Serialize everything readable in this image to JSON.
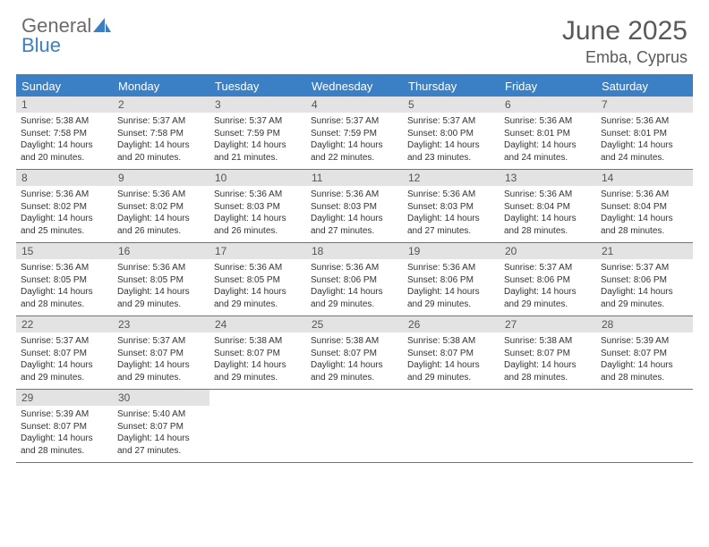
{
  "brand": {
    "general": "General",
    "blue": "Blue"
  },
  "title": "June 2025",
  "location": "Emba, Cyprus",
  "colors": {
    "accent": "#3b7fc4",
    "headerText": "#595959",
    "dayBarBg": "#e3e3e3",
    "dayBarText": "#555555",
    "bodyText": "#333333",
    "weekdayText": "#ffffff"
  },
  "weekdays": [
    "Sunday",
    "Monday",
    "Tuesday",
    "Wednesday",
    "Thursday",
    "Friday",
    "Saturday"
  ],
  "weeks": [
    [
      {
        "n": "1",
        "sr": "5:38 AM",
        "ss": "7:58 PM",
        "dl": "14 hours and 20 minutes."
      },
      {
        "n": "2",
        "sr": "5:37 AM",
        "ss": "7:58 PM",
        "dl": "14 hours and 20 minutes."
      },
      {
        "n": "3",
        "sr": "5:37 AM",
        "ss": "7:59 PM",
        "dl": "14 hours and 21 minutes."
      },
      {
        "n": "4",
        "sr": "5:37 AM",
        "ss": "7:59 PM",
        "dl": "14 hours and 22 minutes."
      },
      {
        "n": "5",
        "sr": "5:37 AM",
        "ss": "8:00 PM",
        "dl": "14 hours and 23 minutes."
      },
      {
        "n": "6",
        "sr": "5:36 AM",
        "ss": "8:01 PM",
        "dl": "14 hours and 24 minutes."
      },
      {
        "n": "7",
        "sr": "5:36 AM",
        "ss": "8:01 PM",
        "dl": "14 hours and 24 minutes."
      }
    ],
    [
      {
        "n": "8",
        "sr": "5:36 AM",
        "ss": "8:02 PM",
        "dl": "14 hours and 25 minutes."
      },
      {
        "n": "9",
        "sr": "5:36 AM",
        "ss": "8:02 PM",
        "dl": "14 hours and 26 minutes."
      },
      {
        "n": "10",
        "sr": "5:36 AM",
        "ss": "8:03 PM",
        "dl": "14 hours and 26 minutes."
      },
      {
        "n": "11",
        "sr": "5:36 AM",
        "ss": "8:03 PM",
        "dl": "14 hours and 27 minutes."
      },
      {
        "n": "12",
        "sr": "5:36 AM",
        "ss": "8:03 PM",
        "dl": "14 hours and 27 minutes."
      },
      {
        "n": "13",
        "sr": "5:36 AM",
        "ss": "8:04 PM",
        "dl": "14 hours and 28 minutes."
      },
      {
        "n": "14",
        "sr": "5:36 AM",
        "ss": "8:04 PM",
        "dl": "14 hours and 28 minutes."
      }
    ],
    [
      {
        "n": "15",
        "sr": "5:36 AM",
        "ss": "8:05 PM",
        "dl": "14 hours and 28 minutes."
      },
      {
        "n": "16",
        "sr": "5:36 AM",
        "ss": "8:05 PM",
        "dl": "14 hours and 29 minutes."
      },
      {
        "n": "17",
        "sr": "5:36 AM",
        "ss": "8:05 PM",
        "dl": "14 hours and 29 minutes."
      },
      {
        "n": "18",
        "sr": "5:36 AM",
        "ss": "8:06 PM",
        "dl": "14 hours and 29 minutes."
      },
      {
        "n": "19",
        "sr": "5:36 AM",
        "ss": "8:06 PM",
        "dl": "14 hours and 29 minutes."
      },
      {
        "n": "20",
        "sr": "5:37 AM",
        "ss": "8:06 PM",
        "dl": "14 hours and 29 minutes."
      },
      {
        "n": "21",
        "sr": "5:37 AM",
        "ss": "8:06 PM",
        "dl": "14 hours and 29 minutes."
      }
    ],
    [
      {
        "n": "22",
        "sr": "5:37 AM",
        "ss": "8:07 PM",
        "dl": "14 hours and 29 minutes."
      },
      {
        "n": "23",
        "sr": "5:37 AM",
        "ss": "8:07 PM",
        "dl": "14 hours and 29 minutes."
      },
      {
        "n": "24",
        "sr": "5:38 AM",
        "ss": "8:07 PM",
        "dl": "14 hours and 29 minutes."
      },
      {
        "n": "25",
        "sr": "5:38 AM",
        "ss": "8:07 PM",
        "dl": "14 hours and 29 minutes."
      },
      {
        "n": "26",
        "sr": "5:38 AM",
        "ss": "8:07 PM",
        "dl": "14 hours and 29 minutes."
      },
      {
        "n": "27",
        "sr": "5:38 AM",
        "ss": "8:07 PM",
        "dl": "14 hours and 28 minutes."
      },
      {
        "n": "28",
        "sr": "5:39 AM",
        "ss": "8:07 PM",
        "dl": "14 hours and 28 minutes."
      }
    ],
    [
      {
        "n": "29",
        "sr": "5:39 AM",
        "ss": "8:07 PM",
        "dl": "14 hours and 28 minutes."
      },
      {
        "n": "30",
        "sr": "5:40 AM",
        "ss": "8:07 PM",
        "dl": "14 hours and 27 minutes."
      },
      null,
      null,
      null,
      null,
      null
    ]
  ],
  "labels": {
    "sunrise": "Sunrise:",
    "sunset": "Sunset:",
    "daylight": "Daylight:"
  }
}
